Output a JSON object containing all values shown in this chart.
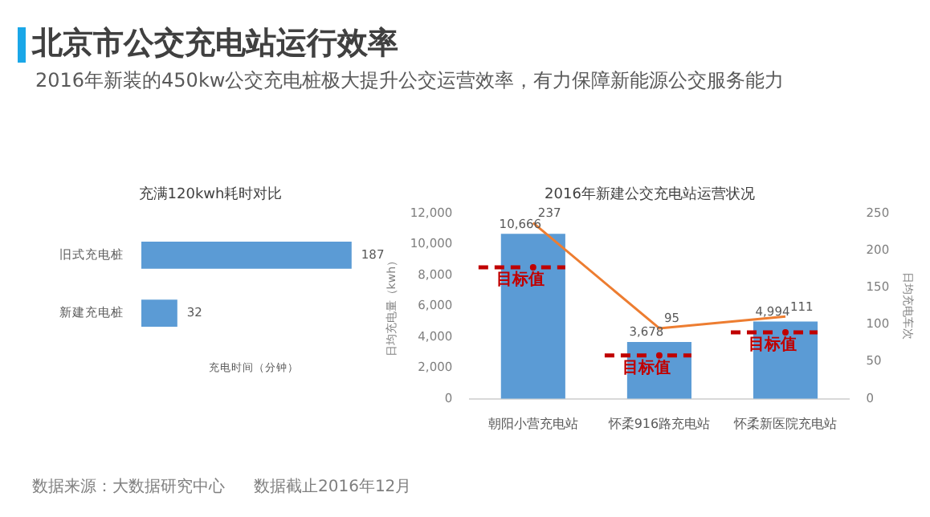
{
  "chart_data": [
    {
      "type": "other",
      "title": "北京市公交充电站运行效率",
      "subtitle": "2016年新装的450kw公交充电桩极大提升公交运营效率，有力保障新能源公交服务能力",
      "annotations": [
        "数据来源：大数据研究中心",
        "数据截止2016年12月"
      ]
    },
    {
      "type": "bar",
      "orientation": "horizontal",
      "title": "充满120kwh耗时对比",
      "xlabel": "充电时间（分钟）",
      "categories": [
        "旧式充电桩",
        "新建充电桩"
      ],
      "values": [
        187,
        32
      ],
      "color": "#5b9bd5",
      "data_labels": true,
      "tick_labels": "y",
      "grid": false,
      "legend": false
    },
    {
      "type": "bar",
      "title": "2016年新建公交充电站运营状况",
      "ylabel": "日均充电量（kwh）",
      "y2label": "日均充电车次",
      "categories": [
        "朝阳小营充电站",
        "怀柔916路充电站",
        "怀柔新医院充电站"
      ],
      "series": [
        {
          "type": "bar",
          "color": "#5b9bd5",
          "values": [
            10666,
            3678,
            4994
          ],
          "value_labels": [
            "10,666",
            "3,678",
            "4,994"
          ]
        },
        {
          "type": "line",
          "axis": "y2",
          "color": "#ed7d31",
          "values": [
            237,
            95,
            111
          ],
          "value_labels": [
            "237",
            "95",
            "111"
          ]
        },
        {
          "type": "scatter",
          "color": "#c00000",
          "line_style": "dashed",
          "values": [
            8500,
            2800,
            4300
          ]
        }
      ],
      "annotations": [
        {
          "text": "目标值",
          "x": "朝阳小营充电站",
          "y": 8500
        },
        {
          "text": "目标值",
          "x": "怀柔916路充电站",
          "y": 2800
        },
        {
          "text": "目标值",
          "x": "怀柔新医院充电站",
          "y": 4300
        }
      ],
      "ylim": [
        0,
        12000
      ],
      "yticks": [
        0,
        {
          "value": 2000,
          "label": "2,000"
        },
        {
          "value": 4000,
          "label": "4,000"
        },
        {
          "value": 6000,
          "label": "6,000"
        },
        {
          "value": 8000,
          "label": "8,000"
        },
        {
          "value": 10000,
          "label": "10,000"
        },
        {
          "value": 12000,
          "label": "12,000"
        }
      ],
      "y2lim": [
        0,
        250
      ],
      "y2ticks": [
        0,
        50,
        100,
        150,
        200,
        250
      ],
      "grid": false,
      "legend": false
    }
  ]
}
